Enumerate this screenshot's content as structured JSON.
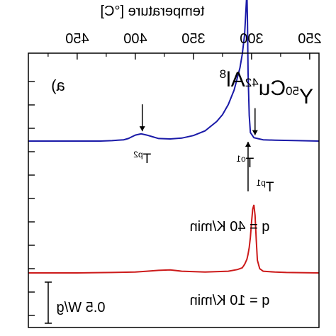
{
  "chart_data": {
    "type": "line",
    "orientation": "mirrored",
    "panel_label": "a)",
    "xlabel": "temperature [°C]",
    "x_ticks": [
      250,
      300,
      350,
      400,
      450
    ],
    "xlim": [
      242,
      492
    ],
    "scale_bar_label": "0.5 W/g",
    "composition": {
      "parts": [
        {
          "el": "Y",
          "sub": "50"
        },
        {
          "el": "Cu",
          "sub": "42"
        },
        {
          "el": "Al",
          "sub": "8"
        }
      ]
    },
    "series": [
      {
        "name": "q = 40 K/min",
        "color": "#1a1aa8",
        "baseline_offset": 1.55,
        "x": [
          242,
          260,
          280,
          290,
          298,
          301,
          302,
          303,
          303.5,
          304,
          305,
          306,
          308,
          310,
          315,
          320,
          325,
          330,
          340,
          350,
          360,
          370,
          380,
          385,
          390,
          395,
          400,
          403,
          406,
          410,
          415,
          420,
          430,
          440,
          450,
          460,
          470,
          480,
          492
        ],
        "y": [
          0,
          0.005,
          0.01,
          0.015,
          0.04,
          0.1,
          0.3,
          0.8,
          1.4,
          1.76,
          1.5,
          1.25,
          1.02,
          0.86,
          0.6,
          0.43,
          0.31,
          0.23,
          0.12,
          0.065,
          0.035,
          0.025,
          0.03,
          0.05,
          0.07,
          0.085,
          0.07,
          0.05,
          0.03,
          0.015,
          0.01,
          0.005,
          0,
          0,
          0,
          0,
          0,
          0,
          0
        ]
      },
      {
        "name": "q = 10 K/min",
        "color": "#cc1a1a",
        "baseline_offset": 0,
        "x": [
          242,
          270,
          280,
          290,
          293,
          295,
          296,
          297,
          298,
          299,
          300,
          301,
          302,
          303,
          304,
          306,
          308,
          312,
          320,
          340,
          360,
          370,
          380,
          390,
          400,
          420,
          450,
          492
        ],
        "y": [
          0,
          0.005,
          0.01,
          0.02,
          0.05,
          0.15,
          0.4,
          0.68,
          0.8,
          0.75,
          0.6,
          0.42,
          0.3,
          0.22,
          0.16,
          0.1,
          0.06,
          0.04,
          0.02,
          0.01,
          0.02,
          0.035,
          0.03,
          0.02,
          0.01,
          0.005,
          0,
          0
        ]
      }
    ],
    "annotations": [
      {
        "label": "T",
        "sub": "o1",
        "x": 297,
        "direction": "down"
      },
      {
        "label": "T",
        "sub": "p1",
        "x": 303,
        "direction": "up"
      },
      {
        "label": "T",
        "sub": "p2",
        "x": 394,
        "direction": "down"
      }
    ]
  }
}
